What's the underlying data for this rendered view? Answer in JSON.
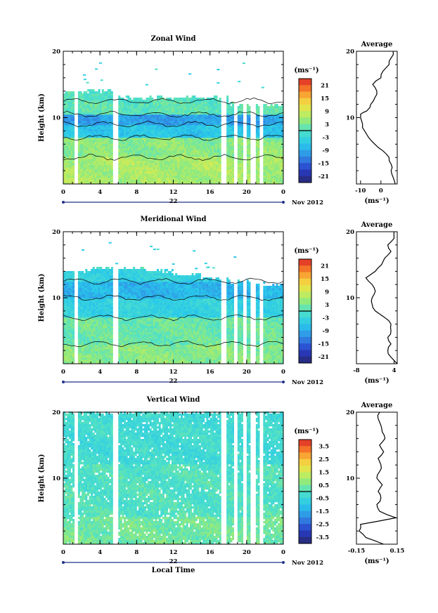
{
  "chart_data": [
    {
      "type": "heatmap",
      "title": "Zonal Wind",
      "ylabel": "Height (km)",
      "x_ticks": [
        "0",
        "4",
        "8",
        "12",
        "16",
        "20",
        "0"
      ],
      "y_ticks": [
        "10",
        "20"
      ],
      "date_label": "22",
      "date_suffix": "Nov 2012",
      "unit_label": "(ms⁻¹)",
      "colorbar_ticks": [
        "21",
        "15",
        "9",
        "3",
        "-3",
        "-9",
        "-15",
        "-21"
      ],
      "colorbar_range": [
        -24,
        24
      ],
      "xlim": [
        0,
        24
      ],
      "ylim": [
        0,
        20
      ],
      "gaps_hours": [
        [
          1.3,
          1.6
        ],
        [
          5.4,
          5.9
        ],
        [
          17.3,
          17.9
        ],
        [
          18.6,
          19.0
        ],
        [
          19.6,
          19.9
        ],
        [
          20.4,
          21.0
        ],
        [
          21.5,
          21.8
        ]
      ],
      "data_top_km": [
        14,
        14,
        13,
        13,
        13,
        13,
        12,
        12
      ],
      "layers": [
        {
          "from_km": 12.5,
          "to_km": 14,
          "value": 0
        },
        {
          "from_km": 10.5,
          "to_km": 12.5,
          "value": 1
        },
        {
          "from_km": 9,
          "to_km": 10.5,
          "value": -10
        },
        {
          "from_km": 7,
          "to_km": 9,
          "value": -6
        },
        {
          "from_km": 4,
          "to_km": 7,
          "value": 4
        },
        {
          "from_km": 0,
          "to_km": 4,
          "value": 6
        }
      ],
      "profile": {
        "title": "Average",
        "x_ticks": [
          "-10",
          "0"
        ],
        "xlim": [
          -12,
          8
        ],
        "xlabel": "(ms⁻¹)",
        "height_km": [
          0,
          1,
          2,
          3,
          4,
          5,
          6,
          7,
          8,
          9,
          10,
          10.5,
          11,
          12,
          13,
          14,
          15,
          16,
          17,
          18,
          19,
          20
        ],
        "value": [
          7,
          6,
          5,
          5,
          4,
          1,
          -3,
          -6,
          -8,
          -9,
          -10,
          -10,
          -7,
          -5,
          -3,
          -2,
          -4,
          0,
          1,
          4,
          5,
          6
        ]
      }
    },
    {
      "type": "heatmap",
      "title": "Meridional Wind",
      "ylabel": "Height (km)",
      "x_ticks": [
        "0",
        "4",
        "8",
        "12",
        "16",
        "20",
        "0"
      ],
      "y_ticks": [
        "10",
        "20"
      ],
      "date_label": "22",
      "date_suffix": "Nov 2012",
      "unit_label": "(ms⁻¹)",
      "colorbar_ticks": [
        "21",
        "15",
        "9",
        "3",
        "-3",
        "-9",
        "-15",
        "-21"
      ],
      "colorbar_range": [
        -24,
        24
      ],
      "xlim": [
        0,
        24
      ],
      "ylim": [
        0,
        20
      ],
      "gaps_hours": [
        [
          1.3,
          1.6
        ],
        [
          5.4,
          5.9
        ],
        [
          17.3,
          17.9
        ],
        [
          18.6,
          19.0
        ],
        [
          19.6,
          19.9
        ],
        [
          20.4,
          21.0
        ],
        [
          21.5,
          21.8
        ]
      ],
      "data_top_km": [
        14,
        14.5,
        14.5,
        14,
        13.5,
        13,
        12.5,
        12
      ],
      "layers": [
        {
          "from_km": 12.5,
          "to_km": 14.5,
          "value": -4
        },
        {
          "from_km": 10,
          "to_km": 12.5,
          "value": -8
        },
        {
          "from_km": 7,
          "to_km": 10,
          "value": -4
        },
        {
          "from_km": 3,
          "to_km": 7,
          "value": 2
        },
        {
          "from_km": 0,
          "to_km": 3,
          "value": 4
        }
      ],
      "profile": {
        "title": "Average",
        "x_ticks": [
          "-8",
          "4"
        ],
        "xlim": [
          -8,
          5
        ],
        "xlabel": "(ms⁻¹)",
        "height_km": [
          0,
          1,
          2,
          3,
          4,
          5,
          6,
          7,
          8,
          9,
          10,
          11,
          12,
          13,
          14,
          15,
          16,
          17,
          18,
          19,
          20
        ],
        "value": [
          5,
          3,
          2,
          3,
          2,
          3,
          3,
          1,
          -2,
          -3,
          -3,
          -2,
          -3,
          -5,
          -2,
          0,
          1,
          3,
          2,
          4,
          4
        ]
      }
    },
    {
      "type": "heatmap",
      "title": "Vertical Wind",
      "ylabel": "Height (km)",
      "xlabel": "Local Time",
      "x_ticks": [
        "0",
        "4",
        "8",
        "12",
        "16",
        "20",
        "0"
      ],
      "y_ticks": [
        "10",
        "20"
      ],
      "date_label": "22",
      "date_suffix": "Nov 2012",
      "unit_label": "(ms⁻¹)",
      "colorbar_ticks": [
        "3.5",
        "2.5",
        "1.5",
        "0.5",
        "-0.5",
        "-1.5",
        "-2.5",
        "-3.5"
      ],
      "colorbar_range": [
        -4,
        4
      ],
      "xlim": [
        0,
        24
      ],
      "ylim": [
        0,
        20
      ],
      "gaps_hours": [
        [
          1.3,
          1.6
        ],
        [
          5.4,
          5.9
        ],
        [
          17.3,
          17.9
        ],
        [
          18.6,
          19.0
        ],
        [
          19.6,
          19.9
        ],
        [
          20.4,
          21.0
        ],
        [
          21.5,
          21.8
        ]
      ],
      "data_top_km": [
        20,
        20,
        20,
        20,
        20,
        20,
        20,
        20
      ],
      "layers": [
        {
          "from_km": 12,
          "to_km": 20,
          "value": -0.3
        },
        {
          "from_km": 4,
          "to_km": 12,
          "value": 0.0
        },
        {
          "from_km": 0,
          "to_km": 4,
          "value": 0.4
        }
      ],
      "profile": {
        "title": "Average",
        "x_ticks": [
          "-0.15",
          "0.15"
        ],
        "xlim": [
          -0.15,
          0.15
        ],
        "xlabel": "(ms⁻¹)",
        "height_km": [
          0,
          1,
          2,
          3,
          4,
          5,
          6,
          7,
          8,
          9,
          10,
          11,
          12,
          13,
          14,
          15,
          16,
          17,
          18,
          19,
          20
        ],
        "value": [
          0.05,
          -0.08,
          -0.13,
          -0.12,
          0.14,
          0.02,
          0.0,
          0.03,
          0.01,
          0.04,
          0.0,
          0.02,
          0.03,
          0.01,
          0.05,
          0.02,
          0.06,
          0.04,
          0.03,
          0.01,
          0.02
        ]
      }
    }
  ]
}
